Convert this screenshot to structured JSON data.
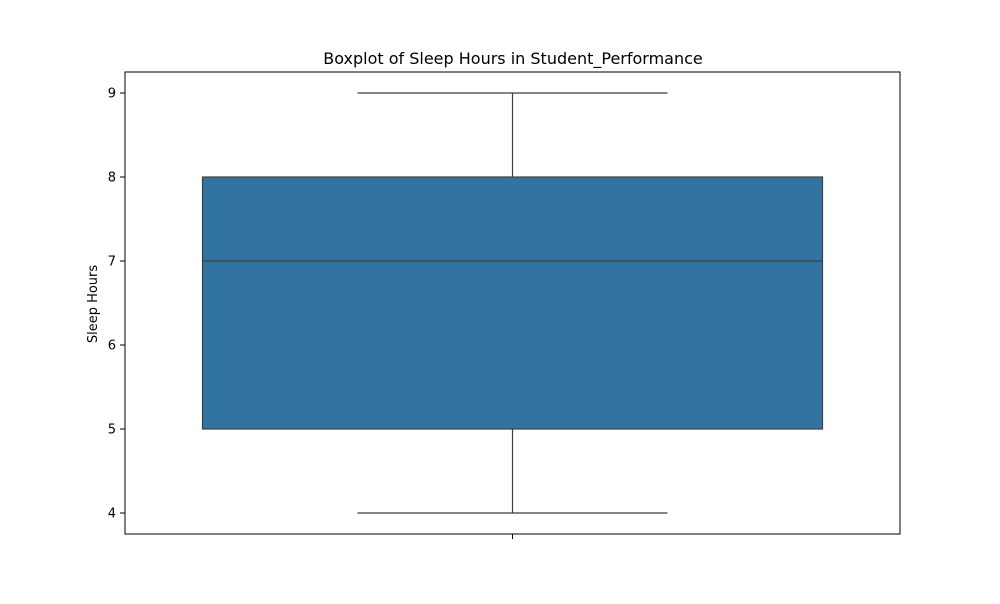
{
  "chart_data": {
    "type": "box",
    "title": "Boxplot of Sleep Hours in Student_Performance",
    "xlabel": "",
    "ylabel": "Sleep Hours",
    "ylim": [
      3.75,
      9.25
    ],
    "yticks": [
      4,
      5,
      6,
      7,
      8,
      9
    ],
    "ytick_labels": [
      "4",
      "5",
      "6",
      "7",
      "8",
      "9"
    ],
    "box": {
      "min": 4,
      "q1": 5,
      "median": 7,
      "q3": 8,
      "max": 9
    },
    "grid": false,
    "legend": "none",
    "colors": {
      "box_fill": "#3274a1",
      "line": "#3f3f3f",
      "axes": "#000000",
      "background": "#ffffff"
    }
  }
}
